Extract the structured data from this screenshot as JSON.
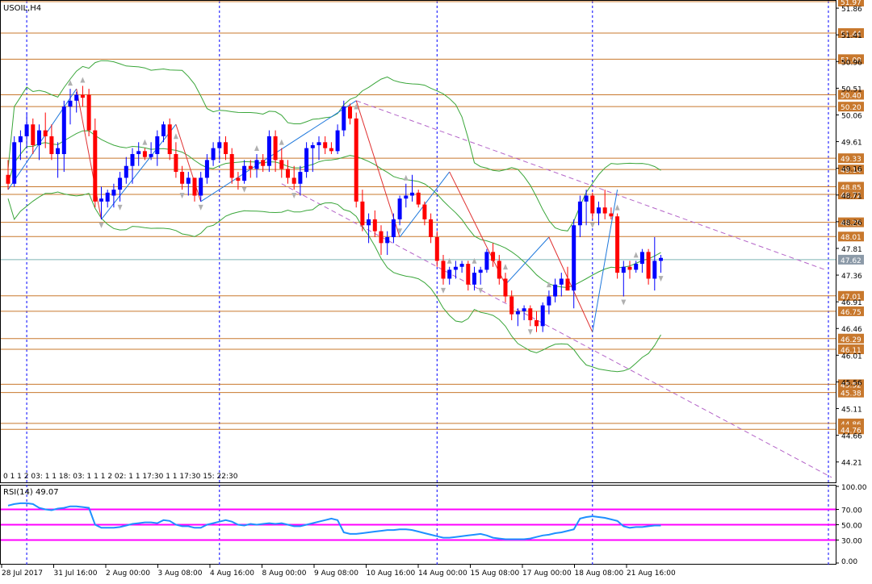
{
  "symbol_label": "USOIL,H4",
  "rsi_label": "RSI(14) 49.07",
  "session_strip": "0 1 1 2 03: 1 1 18: 03: 1 1 1 2 02: 1 1 17:30 1 1 17:30 15: 22:30",
  "colors": {
    "bull": "#0000ff",
    "bear": "#ff0000",
    "level": "#c8782d",
    "bollinger": "#3aa63a",
    "zigzag_up": "#1e78dc",
    "zigzag_down": "#e03030",
    "channel": "#b464c8",
    "rsi": "#1e90ff",
    "rsi_level": "#ff00ff",
    "time_sep": "#0000ff",
    "current": "#7db3b3"
  },
  "chart_data": [
    {
      "type": "candlestick",
      "title": "USOIL,H4",
      "ylim": [
        43.88,
        51.97
      ],
      "y_ticks": [
        "51.86",
        "51.41",
        "50.96",
        "50.51",
        "50.06",
        "49.61",
        "49.16",
        "48.71",
        "48.26",
        "47.81",
        "47.36",
        "46.91",
        "46.46",
        "46.01",
        "45.56",
        "45.11",
        "44.66",
        "44.21"
      ],
      "price_levels": [
        "51.97",
        "51.44",
        "51.00",
        "50.40",
        "50.20",
        "49.33",
        "49.14",
        "48.85",
        "48.72",
        "48.25",
        "48.01",
        "47.62",
        "47.01",
        "46.75",
        "46.29",
        "46.11",
        "45.52",
        "45.38",
        "44.86",
        "44.76"
      ],
      "current_price": "47.62",
      "x_labels": [
        "28 Jul 2017",
        "31 Jul 16:00",
        "2 Aug 00:00",
        "3 Aug 08:00",
        "4 Aug 16:00",
        "8 Aug 00:00",
        "9 Aug 08:00",
        "10 Aug 16:00",
        "14 Aug 00:00",
        "15 Aug 08:00",
        "17 Aug 00:00",
        "18 Aug 08:00",
        "21 Aug 16:00"
      ],
      "candles": [
        [
          49.05,
          49.3,
          48.8,
          48.9
        ],
        [
          48.9,
          49.7,
          48.85,
          49.6
        ],
        [
          49.6,
          49.8,
          49.3,
          49.7
        ],
        [
          49.7,
          50.1,
          49.5,
          49.9
        ],
        [
          49.9,
          50.0,
          49.4,
          49.55
        ],
        [
          49.55,
          49.9,
          49.3,
          49.8
        ],
        [
          49.8,
          50.1,
          49.5,
          49.7
        ],
        [
          49.7,
          49.9,
          49.3,
          49.4
        ],
        [
          49.4,
          49.6,
          49.0,
          49.5
        ],
        [
          49.4,
          50.3,
          49.1,
          50.2
        ],
        [
          50.2,
          50.5,
          49.9,
          50.3
        ],
        [
          50.3,
          50.45,
          50.1,
          50.4
        ],
        [
          50.4,
          50.55,
          50.2,
          50.35
        ],
        [
          50.4,
          50.5,
          49.7,
          49.8
        ],
        [
          49.8,
          50.0,
          48.5,
          48.6
        ],
        [
          48.6,
          48.85,
          48.3,
          48.65
        ],
        [
          48.6,
          48.8,
          48.5,
          48.75
        ],
        [
          48.7,
          48.9,
          48.5,
          48.8
        ],
        [
          48.8,
          49.1,
          48.6,
          49.0
        ],
        [
          49.0,
          49.35,
          48.9,
          49.2
        ],
        [
          49.2,
          49.5,
          48.9,
          49.4
        ],
        [
          49.4,
          49.6,
          49.2,
          49.45
        ],
        [
          49.45,
          49.5,
          49.3,
          49.35
        ],
        [
          49.35,
          49.6,
          49.3,
          49.4
        ],
        [
          49.4,
          49.8,
          49.2,
          49.7
        ],
        [
          49.7,
          49.95,
          49.6,
          49.9
        ],
        [
          49.9,
          50.0,
          49.3,
          49.4
        ],
        [
          49.4,
          49.6,
          49.0,
          49.1
        ],
        [
          49.1,
          49.2,
          48.8,
          48.9
        ],
        [
          48.9,
          49.1,
          48.7,
          49.0
        ],
        [
          49.0,
          49.0,
          48.6,
          48.7
        ],
        [
          48.7,
          49.1,
          48.6,
          49.0
        ],
        [
          49.0,
          49.4,
          48.9,
          49.3
        ],
        [
          49.3,
          49.6,
          49.2,
          49.5
        ],
        [
          49.5,
          49.7,
          49.3,
          49.6
        ],
        [
          49.6,
          49.7,
          49.3,
          49.4
        ],
        [
          49.4,
          49.5,
          48.9,
          49.0
        ],
        [
          49.0,
          49.1,
          48.8,
          48.95
        ],
        [
          48.95,
          49.3,
          48.9,
          49.2
        ],
        [
          49.2,
          49.3,
          49.0,
          49.15
        ],
        [
          49.15,
          49.4,
          49.0,
          49.3
        ],
        [
          49.3,
          49.4,
          49.1,
          49.2
        ],
        [
          49.2,
          49.8,
          49.1,
          49.7
        ],
        [
          49.7,
          49.8,
          49.1,
          49.3
        ],
        [
          49.3,
          49.5,
          49.0,
          49.15
        ],
        [
          49.15,
          49.3,
          48.9,
          49.0
        ],
        [
          49.0,
          49.2,
          48.8,
          48.9
        ],
        [
          48.9,
          49.2,
          48.7,
          49.1
        ],
        [
          49.1,
          49.6,
          49.0,
          49.5
        ],
        [
          49.5,
          49.6,
          49.1,
          49.55
        ],
        [
          49.55,
          49.7,
          49.3,
          49.6
        ],
        [
          49.6,
          49.7,
          49.4,
          49.5
        ],
        [
          49.5,
          49.6,
          49.4,
          49.45
        ],
        [
          49.45,
          49.9,
          49.4,
          49.8
        ],
        [
          49.8,
          50.3,
          49.7,
          50.2
        ],
        [
          50.2,
          50.25,
          49.9,
          50.0
        ],
        [
          50.0,
          50.1,
          48.5,
          48.6
        ],
        [
          48.6,
          48.8,
          48.1,
          48.2
        ],
        [
          48.2,
          48.4,
          47.9,
          48.3
        ],
        [
          48.3,
          48.45,
          48.0,
          48.1
        ],
        [
          48.1,
          48.2,
          47.7,
          47.9
        ],
        [
          47.9,
          48.1,
          47.7,
          48.0
        ],
        [
          48.0,
          48.4,
          47.9,
          48.3
        ],
        [
          48.3,
          48.7,
          48.2,
          48.65
        ],
        [
          48.65,
          48.9,
          48.5,
          48.7
        ],
        [
          48.7,
          49.05,
          48.6,
          48.75
        ],
        [
          48.75,
          48.8,
          48.5,
          48.55
        ],
        [
          48.55,
          48.6,
          48.2,
          48.3
        ],
        [
          48.3,
          48.4,
          47.9,
          48.0
        ],
        [
          48.0,
          48.1,
          47.5,
          47.6
        ],
        [
          47.6,
          47.7,
          47.2,
          47.3
        ],
        [
          47.3,
          47.5,
          47.2,
          47.45
        ],
        [
          47.45,
          47.6,
          47.3,
          47.5
        ],
        [
          47.5,
          47.6,
          47.4,
          47.55
        ],
        [
          47.55,
          47.6,
          47.1,
          47.2
        ],
        [
          47.2,
          47.5,
          47.1,
          47.4
        ],
        [
          47.4,
          47.5,
          47.2,
          47.45
        ],
        [
          47.45,
          47.8,
          47.4,
          47.75
        ],
        [
          47.75,
          47.9,
          47.5,
          47.6
        ],
        [
          47.6,
          47.7,
          47.2,
          47.3
        ],
        [
          47.3,
          47.4,
          46.9,
          47.0
        ],
        [
          47.0,
          47.1,
          46.6,
          46.7
        ],
        [
          46.7,
          46.8,
          46.5,
          46.75
        ],
        [
          46.75,
          46.85,
          46.6,
          46.8
        ],
        [
          46.8,
          46.85,
          46.5,
          46.6
        ],
        [
          46.6,
          46.75,
          46.4,
          46.5
        ],
        [
          46.5,
          46.9,
          46.4,
          46.85
        ],
        [
          46.85,
          47.1,
          46.7,
          47.0
        ],
        [
          47.0,
          47.3,
          46.9,
          47.2
        ],
        [
          47.2,
          47.4,
          47.0,
          47.3
        ],
        [
          47.3,
          47.5,
          47.1,
          47.1
        ],
        [
          47.1,
          48.3,
          46.8,
          48.2
        ],
        [
          48.2,
          48.7,
          48.0,
          48.6
        ],
        [
          48.6,
          48.8,
          48.2,
          48.7
        ],
        [
          48.7,
          48.75,
          48.3,
          48.4
        ],
        [
          48.4,
          48.6,
          48.2,
          48.5
        ],
        [
          48.5,
          48.8,
          48.3,
          48.4
        ],
        [
          48.4,
          48.5,
          48.3,
          48.35
        ],
        [
          48.35,
          48.4,
          47.3,
          47.4
        ],
        [
          47.4,
          47.6,
          47.0,
          47.5
        ],
        [
          47.5,
          47.6,
          47.3,
          47.45
        ],
        [
          47.45,
          47.6,
          47.4,
          47.55
        ],
        [
          47.55,
          47.8,
          47.4,
          47.75
        ],
        [
          47.75,
          47.8,
          47.2,
          47.3
        ],
        [
          47.3,
          48.0,
          47.1,
          47.6
        ],
        [
          47.6,
          47.7,
          47.4,
          47.65
        ]
      ]
    },
    {
      "type": "line",
      "title": "RSI(14) 49.07",
      "ylim": [
        0,
        100
      ],
      "y_ticks": [
        "100.00",
        "70.00",
        "50.00",
        "30.00",
        "0.00"
      ],
      "levels": [
        70,
        50,
        30
      ],
      "values": [
        75,
        77,
        78,
        78,
        77,
        72,
        70,
        69,
        71,
        72,
        74,
        74,
        73,
        72,
        50,
        46,
        46,
        46,
        47,
        49,
        51,
        52,
        53,
        53,
        52,
        56,
        55,
        50,
        48,
        48,
        46,
        46,
        50,
        52,
        54,
        56,
        54,
        50,
        49,
        51,
        50,
        51,
        52,
        51,
        52,
        50,
        48,
        48,
        50,
        52,
        54,
        56,
        58,
        56,
        40,
        38,
        38,
        39,
        40,
        41,
        42,
        43,
        43,
        44,
        44,
        43,
        41,
        39,
        37,
        35,
        33,
        33,
        34,
        35,
        36,
        37,
        38,
        36,
        33,
        32,
        31,
        31,
        31,
        31,
        32,
        34,
        36,
        37,
        39,
        40,
        42,
        44,
        58,
        60,
        61,
        60,
        59,
        57,
        55,
        48,
        46,
        47,
        47,
        48,
        49,
        49
      ]
    }
  ]
}
